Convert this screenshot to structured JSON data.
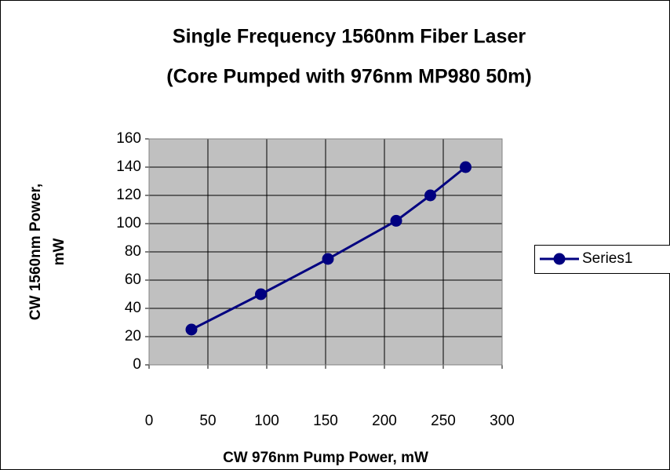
{
  "chart_data": {
    "type": "line",
    "title": [
      "Single Frequency 1560nm Fiber Laser",
      "(Core Pumped with 976nm MP980 50m)"
    ],
    "xlabel": "CW 976nm Pump Power, mW",
    "ylabel": [
      "CW 1560nm Power,",
      "mW"
    ],
    "x": [
      36,
      95,
      152,
      210,
      239,
      269
    ],
    "series": [
      {
        "name": "Series1",
        "color": "#000080",
        "values": [
          25,
          50,
          75,
          102,
          120,
          140
        ]
      }
    ],
    "xlim": [
      0,
      300
    ],
    "xticks": [
      0,
      50,
      100,
      150,
      200,
      250,
      300
    ],
    "ylim": [
      0,
      160
    ],
    "yticks": [
      0,
      20,
      40,
      60,
      80,
      100,
      120,
      140,
      160
    ],
    "grid": true,
    "legend": "right"
  }
}
